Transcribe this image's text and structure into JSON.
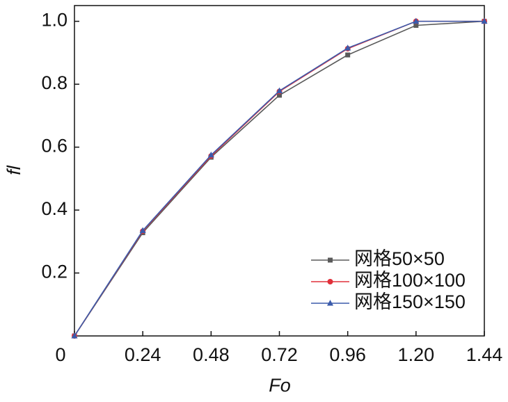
{
  "chart_data": {
    "type": "line",
    "x_label": "Fo",
    "y_label": "fl",
    "x": [
      0,
      0.24,
      0.48,
      0.72,
      0.96,
      1.2,
      1.44
    ],
    "series": [
      {
        "name": "网格50×50",
        "color": "#5a5a5a",
        "marker": "square",
        "values": [
          0,
          0.328,
          0.568,
          0.765,
          0.893,
          0.987,
          1.0
        ]
      },
      {
        "name": "网格100×100",
        "color": "#e0303a",
        "marker": "circle",
        "values": [
          0,
          0.333,
          0.572,
          0.777,
          0.913,
          1.0,
          1.0
        ]
      },
      {
        "name": "网格150×150",
        "color": "#3b5bab",
        "marker": "triangle",
        "values": [
          0,
          0.335,
          0.575,
          0.779,
          0.915,
          1.0,
          1.0
        ]
      }
    ],
    "xlim": [
      0,
      1.44
    ],
    "ylim": [
      0,
      1.05
    ],
    "xticks": [
      0,
      0.24,
      0.48,
      0.72,
      0.96,
      {
        "value": 1.2,
        "label": "1.20"
      },
      1.44
    ],
    "yticks": [
      0.2,
      0.4,
      0.6,
      0.8,
      {
        "value": 1,
        "label": "1.0"
      }
    ],
    "legend": "lower right",
    "grid": false
  }
}
